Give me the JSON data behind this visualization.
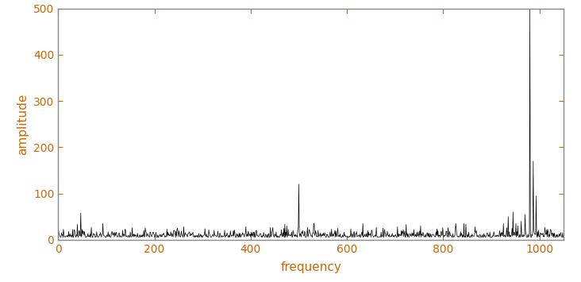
{
  "title": "",
  "xlabel": "frequency",
  "ylabel": "amplitude",
  "xlim": [
    0,
    1050
  ],
  "ylim": [
    0,
    500
  ],
  "xticks": [
    0,
    200,
    400,
    600,
    800,
    1000
  ],
  "yticks": [
    0,
    100,
    200,
    300,
    400,
    500
  ],
  "line_color": "#000000",
  "line_width": 0.5,
  "background_color": "#ffffff",
  "box_color": "#888888",
  "label_color": "#cc6600",
  "label_fontsize": 11,
  "tick_fontsize": 10,
  "n_points": 1050,
  "noise_base": 5,
  "noise_scale": 5,
  "random_seed": 42
}
